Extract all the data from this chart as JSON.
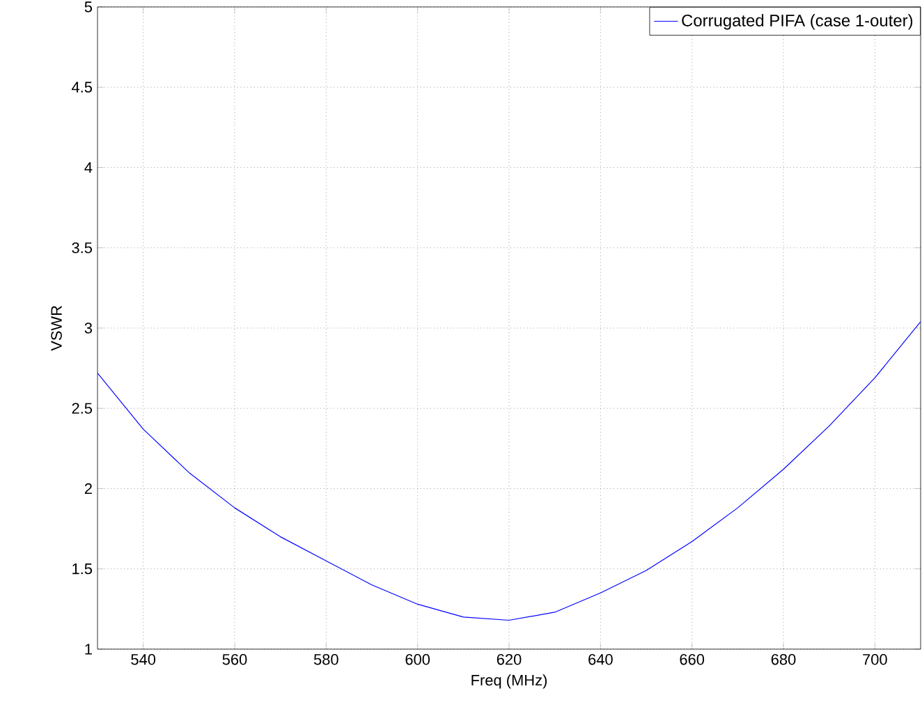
{
  "chart_data": {
    "type": "line",
    "xlabel": "Freq (MHz)",
    "ylabel": "VSWR",
    "x": [
      530,
      540,
      550,
      560,
      570,
      580,
      590,
      600,
      610,
      620,
      630,
      640,
      650,
      660,
      670,
      680,
      690,
      700,
      710
    ],
    "series": [
      {
        "name": "Corrugated PIFA (case 1-outer)",
        "color": "#0000ff",
        "values": [
          2.72,
          2.37,
          2.1,
          1.88,
          1.7,
          1.55,
          1.4,
          1.28,
          1.2,
          1.18,
          1.23,
          1.35,
          1.49,
          1.67,
          1.88,
          2.12,
          2.39,
          2.69,
          3.04
        ]
      }
    ],
    "xlim": [
      530,
      710
    ],
    "ylim": [
      1,
      5
    ],
    "xticks": [
      540,
      560,
      580,
      600,
      620,
      640,
      660,
      680,
      700
    ],
    "yticks": [
      1,
      1.5,
      2,
      2.5,
      3,
      3.5,
      4,
      4.5,
      5
    ],
    "grid": true,
    "legend": "top right",
    "marker": "none",
    "line_style": "solid"
  }
}
